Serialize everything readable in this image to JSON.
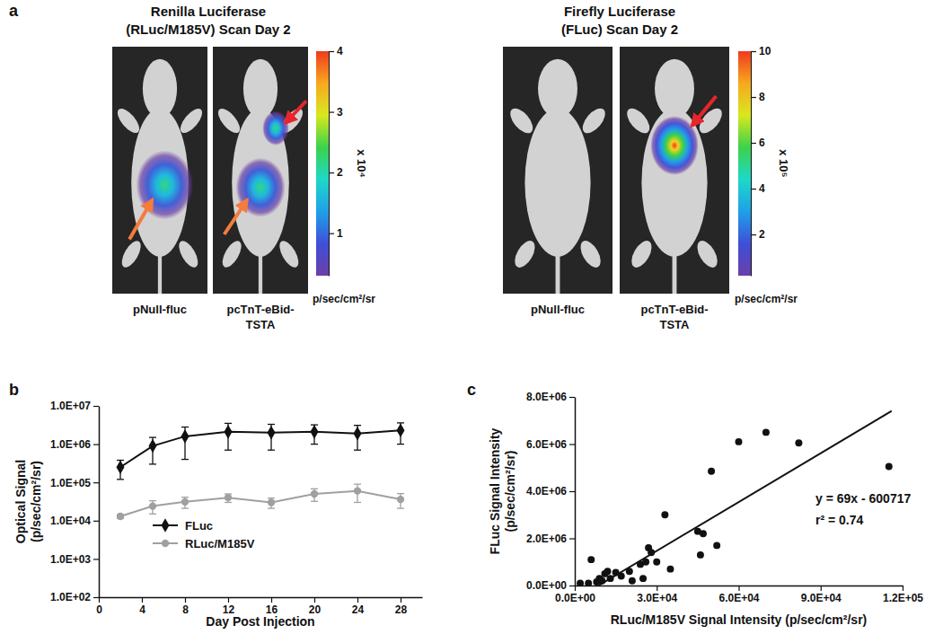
{
  "chart_data": [
    {
      "type": "image",
      "panel": "a",
      "groups": [
        {
          "title": [
            "Renilla Luciferase",
            "(RLuc/M185V) Scan Day 2"
          ],
          "images": [
            "pNull-fluc",
            "pcTnT-eBid-TSTA"
          ],
          "colorbar": {
            "range": [
              0.3,
              4
            ],
            "ticks": [
              1,
              2,
              3,
              4
            ],
            "multiplier": "x 10⁴",
            "unit": "p/sec/cm²/sr"
          }
        },
        {
          "title": [
            "Firefly Luciferase",
            "(FLuc) Scan Day 2"
          ],
          "images": [
            "pNull-fluc",
            "pcTnT-eBid-TSTA"
          ],
          "colorbar": {
            "range": [
              0.2,
              10
            ],
            "ticks": [
              2,
              4,
              6,
              8,
              10
            ],
            "multiplier": "x 10⁵",
            "unit": "p/sec/cm²/sr"
          }
        }
      ]
    },
    {
      "type": "line",
      "panel": "b",
      "x_label": "Day Post Injection",
      "y_label": [
        "Optical Signal",
        "(p/sec/cm²/sr)"
      ],
      "x": [
        2,
        5,
        8,
        12,
        16,
        20,
        24,
        28
      ],
      "xlim": [
        0,
        30
      ],
      "xticks": [
        0,
        4,
        8,
        12,
        16,
        20,
        24,
        28
      ],
      "log": "y",
      "ylim": [
        100,
        10000000
      ],
      "yticks": [
        {
          "value": 100,
          "label": "1.0E+02"
        },
        {
          "value": 1000,
          "label": "1.0E+03"
        },
        {
          "value": 10000,
          "label": "1.0E+04"
        },
        {
          "value": 100000,
          "label": "1.0E+05"
        },
        {
          "value": 1000000,
          "label": "1.0E+06"
        },
        {
          "value": 10000000,
          "label": "1.0E+07"
        }
      ],
      "grid": false,
      "legend": "lower left",
      "series": [
        {
          "name": "FLuc",
          "color": "#111111",
          "marker": "diamond",
          "line_style": "solid",
          "values": [
            250000,
            900000,
            1600000,
            2100000,
            2000000,
            2100000,
            1900000,
            2300000
          ],
          "errors": [
            130000,
            600000,
            1200000,
            1400000,
            1300000,
            1100000,
            1200000,
            1300000
          ]
        },
        {
          "name": "RLuc/M185V",
          "color": "#a0a0a0",
          "marker": "circle",
          "line_style": "solid",
          "values": [
            13000,
            24000,
            31000,
            40000,
            30000,
            50000,
            60000,
            36000
          ],
          "errors": [
            1500,
            9000,
            10000,
            10000,
            9000,
            18000,
            30000,
            15000
          ]
        }
      ]
    },
    {
      "type": "scatter",
      "panel": "c",
      "x_label": "RLuc/M185V Signal Intensity (p/sec/cm²/sr)",
      "y_label": [
        "FLuc Signal Intensity",
        "(p/sec/cm²/sr)"
      ],
      "xlim": [
        0,
        120000
      ],
      "xticks": [
        {
          "value": 0,
          "label": "0.0E+00"
        },
        {
          "value": 30000,
          "label": "3.0E+04"
        },
        {
          "value": 60000,
          "label": "6.0E+04"
        },
        {
          "value": 90000,
          "label": "9.0E+04"
        },
        {
          "value": 120000,
          "label": "1.2E+05"
        }
      ],
      "ylim": [
        0,
        8000000
      ],
      "yticks": [
        {
          "value": 0,
          "label": "0.0E+00"
        },
        {
          "value": 2000000,
          "label": "2.0E+06"
        },
        {
          "value": 4000000,
          "label": "4.0E+06"
        },
        {
          "value": 6000000,
          "label": "6.0E+06"
        },
        {
          "value": 8000000,
          "label": "8.0E+06"
        }
      ],
      "grid": false,
      "color": "#111111",
      "marker": "circle",
      "x": [
        2000,
        5000,
        6000,
        8000,
        9000,
        10000,
        11000,
        12000,
        13000,
        15000,
        17000,
        20000,
        21000,
        24000,
        25000,
        26000,
        27000,
        28000,
        30000,
        33000,
        35000,
        45000,
        46000,
        47000,
        50000,
        52000,
        60000,
        70000,
        82000,
        115000
      ],
      "values": [
        100000,
        100000,
        1100000,
        150000,
        300000,
        200000,
        500000,
        600000,
        300000,
        550000,
        400000,
        600000,
        200000,
        900000,
        300000,
        1000000,
        1600000,
        1400000,
        1000000,
        3000000,
        700000,
        2300000,
        1300000,
        2200000,
        4850000,
        1700000,
        6100000,
        6500000,
        6050000,
        5050000
      ],
      "fit": {
        "slope": 69,
        "intercept": -600717,
        "x": [
          8706,
          116000
        ]
      },
      "annotations": [
        "y = 69x - 600717",
        "r² = 0.74"
      ]
    }
  ]
}
